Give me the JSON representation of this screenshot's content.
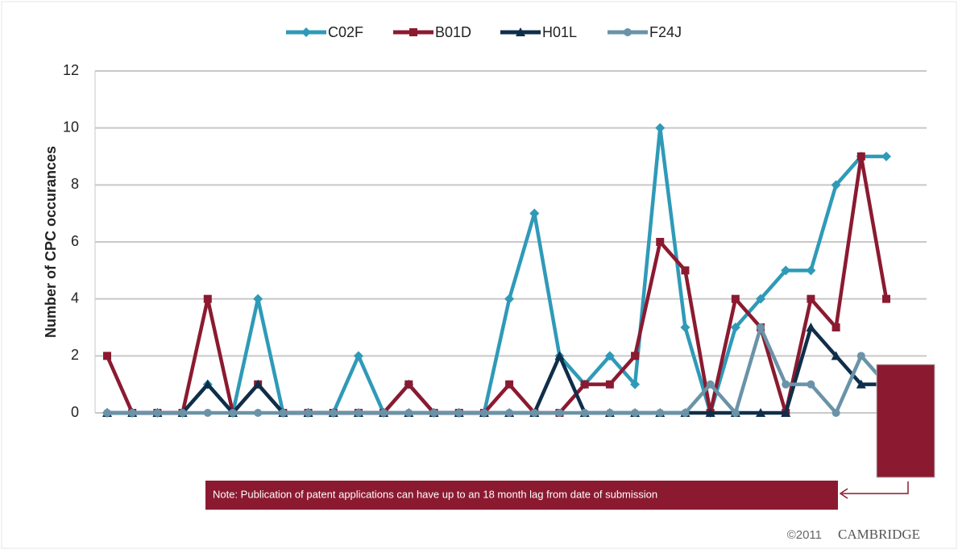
{
  "chart_data": {
    "type": "line",
    "ylabel": "Number of CPC occurances",
    "categories": [
      null,
      null,
      null,
      null,
      null,
      null,
      null,
      null,
      null,
      null,
      null,
      null,
      null,
      null,
      null,
      null,
      null,
      null,
      null,
      null,
      null,
      null,
      null,
      null,
      null,
      null,
      null,
      null,
      null,
      null,
      null,
      null
    ],
    "series": [
      {
        "name": "C02F",
        "color": "#2f9ab8",
        "marker": "diamond",
        "values": [
          0,
          0,
          0,
          0,
          1,
          0,
          4,
          0,
          0,
          0,
          2,
          0,
          1,
          0,
          0,
          0,
          4,
          7,
          2,
          1,
          2,
          1,
          10,
          3,
          0,
          3,
          4,
          5,
          5,
          8,
          9,
          9
        ]
      },
      {
        "name": "B01D",
        "color": "#8b1a30",
        "marker": "square",
        "values": [
          2,
          0,
          0,
          0,
          4,
          0,
          1,
          0,
          0,
          0,
          0,
          0,
          1,
          0,
          0,
          0,
          1,
          0,
          0,
          1,
          1,
          2,
          6,
          5,
          0,
          4,
          3,
          0,
          4,
          3,
          9,
          4
        ]
      },
      {
        "name": "H01L",
        "color": "#0f2e4a",
        "marker": "triangle",
        "values": [
          0,
          0,
          0,
          0,
          1,
          0,
          1,
          0,
          0,
          0,
          0,
          0,
          0,
          0,
          0,
          0,
          0,
          0,
          2,
          0,
          0,
          0,
          0,
          0,
          0,
          0,
          0,
          0,
          3,
          2,
          1,
          1
        ]
      },
      {
        "name": "F24J",
        "color": "#6a93a8",
        "marker": "circle",
        "values": [
          0,
          0,
          0,
          0,
          0,
          0,
          0,
          0,
          0,
          0,
          0,
          0,
          0,
          0,
          0,
          0,
          0,
          0,
          0,
          0,
          0,
          0,
          0,
          0,
          1,
          0,
          3,
          1,
          1,
          0,
          2,
          1
        ]
      }
    ],
    "ylim": [
      0,
      12
    ],
    "yticks": [
      0,
      2,
      4,
      6,
      8,
      10,
      12
    ],
    "grid": true,
    "legend": "top",
    "note": "Note: Publication of patent applications can have up to an 18 month lag from date of submission",
    "copyright": "©2011",
    "logo": "CAMBRIDGE"
  }
}
